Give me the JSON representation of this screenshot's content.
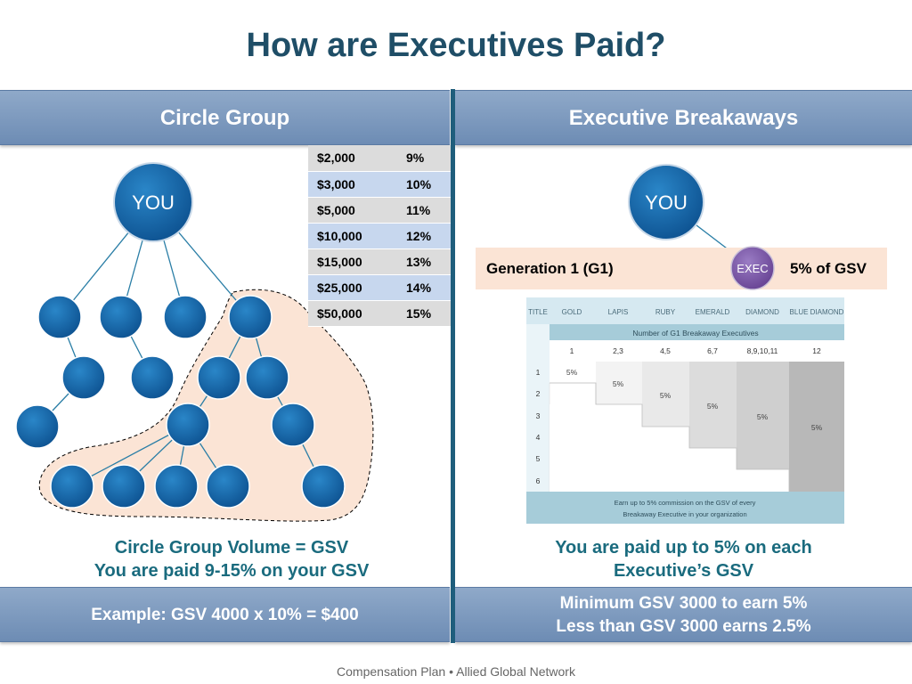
{
  "title": "How are Executives Paid?",
  "left_header": "Circle Group",
  "right_header": "Executive Breakaways",
  "you_label": "YOU",
  "exec_label": "EXEC",
  "rate_table": [
    {
      "gsv": "$2,000",
      "rate": "9%"
    },
    {
      "gsv": "$3,000",
      "rate": "10%"
    },
    {
      "gsv": "$5,000",
      "rate": "11%"
    },
    {
      "gsv": "$10,000",
      "rate": "12%"
    },
    {
      "gsv": "$15,000",
      "rate": "13%"
    },
    {
      "gsv": "$25,000",
      "rate": "14%"
    },
    {
      "gsv": "$50,000",
      "rate": "15%"
    }
  ],
  "left_caption": {
    "line1": "Circle Group Volume = GSV",
    "line2": "You are paid 9-15% on your GSV"
  },
  "right_caption": {
    "line1": "You are paid up to 5% on each",
    "line2": "Executive’s GSV"
  },
  "g1_label": "Generation 1 (G1)",
  "g1_percent": "5% of GSV",
  "breakaway_grid": {
    "title_col": "TITLE",
    "titles": [
      "GOLD",
      "LAPIS",
      "RUBY",
      "EMERALD",
      "DIAMOND",
      "BLUE DIAMOND"
    ],
    "header_note": "Number of G1 Breakaway Executives",
    "counts": [
      "1",
      "2,3",
      "4,5",
      "6,7",
      "8,9,10,11",
      "12"
    ],
    "generations": [
      "1",
      "2",
      "3",
      "4",
      "5",
      "6"
    ],
    "cell_value": "5%",
    "footnote_line1": "Earn up to 5% commission on the GSV of every",
    "footnote_line2": "Breakaway Executive in your organization"
  },
  "left_footer": "Example: GSV 4000 x 10% = $400",
  "right_footer": {
    "line1": "Minimum GSV 3000 to earn  5%",
    "line2": "Less than GSV 3000 earns 2.5%"
  },
  "footer": "Compensation Plan • Allied Global Network",
  "colors": {
    "title": "#1f4e67",
    "band": "#7a97bd",
    "node": "#1565a8",
    "exec_node": "#7d57a8",
    "caption": "#1a6b7e",
    "g1_bg": "#fbe4d5"
  }
}
